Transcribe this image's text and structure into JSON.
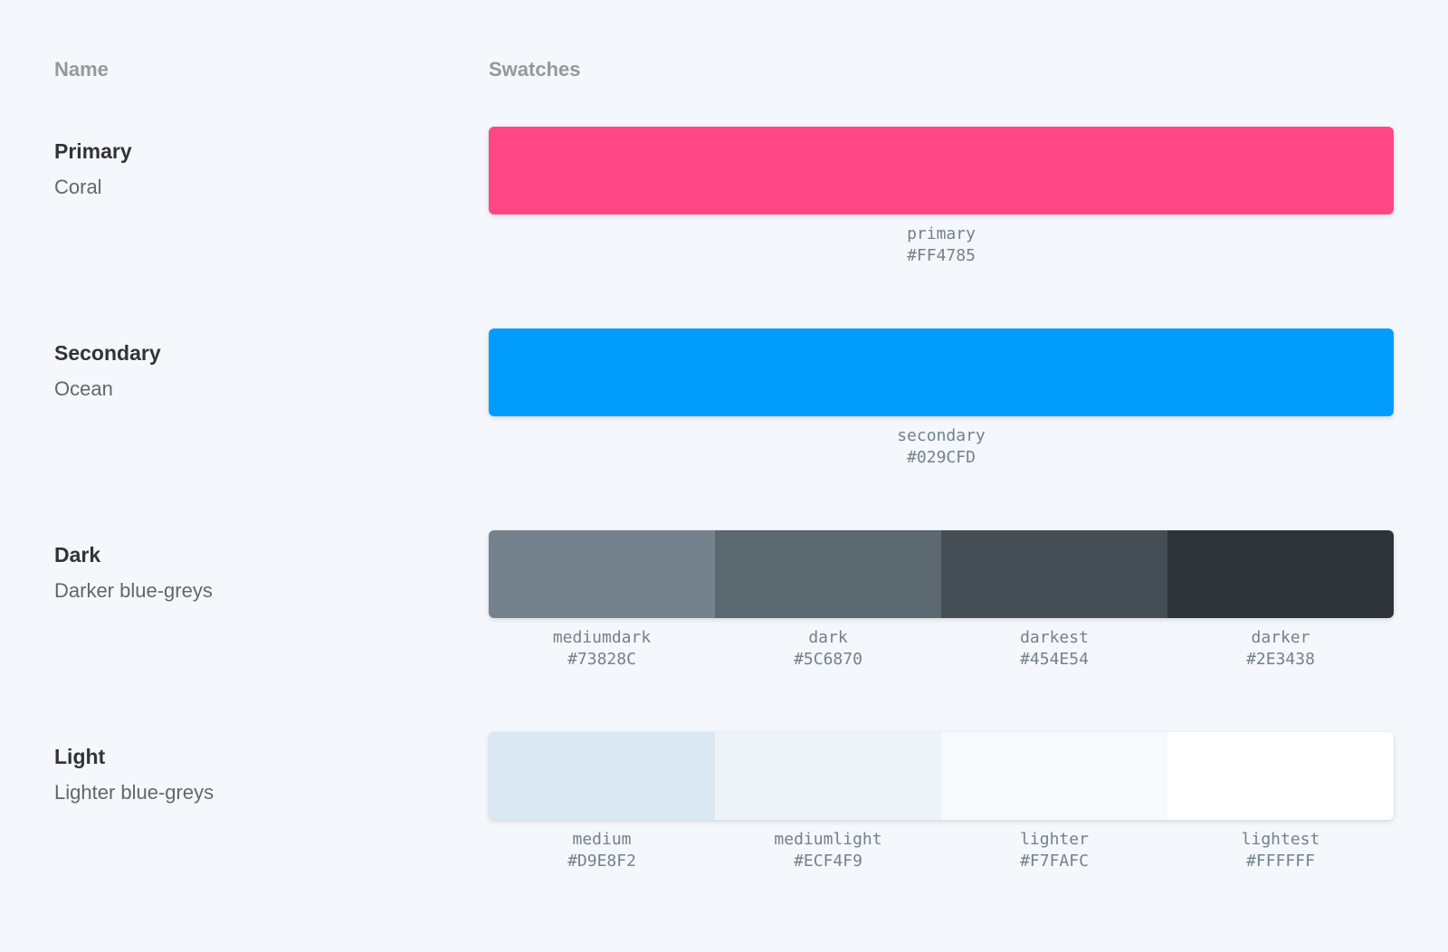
{
  "palette": {
    "headers": {
      "name": "Name",
      "swatches": "Swatches"
    },
    "rows": [
      {
        "title": "Primary",
        "subtitle": "Coral",
        "swatches": [
          {
            "name": "primary",
            "value": "#FF4785"
          }
        ]
      },
      {
        "title": "Secondary",
        "subtitle": "Ocean",
        "swatches": [
          {
            "name": "secondary",
            "value": "#029CFD"
          }
        ]
      },
      {
        "title": "Dark",
        "subtitle": "Darker blue-greys",
        "swatches": [
          {
            "name": "mediumdark",
            "value": "#73828C"
          },
          {
            "name": "dark",
            "value": "#5C6870"
          },
          {
            "name": "darkest",
            "value": "#454E54"
          },
          {
            "name": "darker",
            "value": "#2E3438"
          }
        ]
      },
      {
        "title": "Light",
        "subtitle": "Lighter blue-greys",
        "swatches": [
          {
            "name": "medium",
            "value": "#D9E8F2"
          },
          {
            "name": "mediumlight",
            "value": "#ECF4F9"
          },
          {
            "name": "lighter",
            "value": "#F7FAFC"
          },
          {
            "name": "lightest",
            "value": "#FFFFFF"
          }
        ]
      }
    ],
    "theme": {
      "page_background": "#F4F7FB"
    }
  }
}
